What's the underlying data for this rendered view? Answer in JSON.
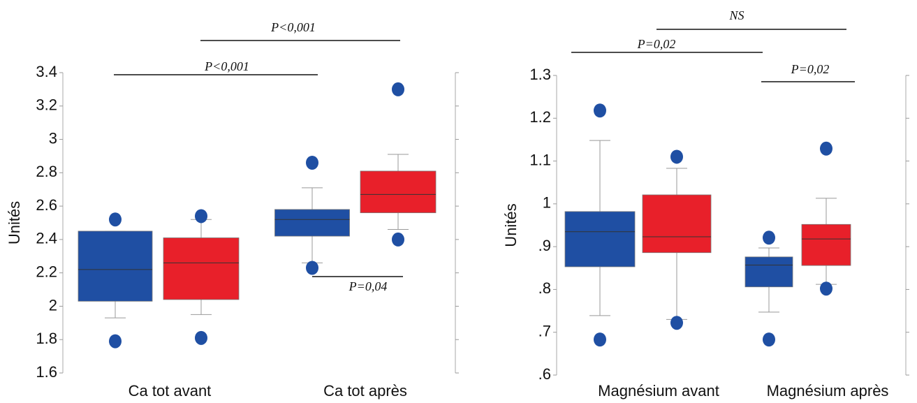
{
  "chart_data": [
    {
      "type": "box",
      "ylabel": "Unités",
      "categories": [
        "Ca tot avant",
        "Ca tot après"
      ],
      "ylim": [
        1.6,
        3.4
      ],
      "yticks": [
        1.6,
        1.8,
        2,
        2.2,
        2.4,
        2.6,
        2.8,
        3,
        3.2,
        3.4
      ],
      "series": [
        {
          "color": "#1f4fa3",
          "boxes": [
            {
              "whisker_low": 1.93,
              "q1": 2.03,
              "median": 2.22,
              "q3": 2.45,
              "whisker_high": 2.45,
              "outliers": [
                2.52,
                1.79
              ]
            },
            {
              "whisker_low": 2.26,
              "q1": 2.42,
              "median": 2.52,
              "q3": 2.58,
              "whisker_high": 2.71,
              "outliers": [
                2.86,
                2.23
              ]
            }
          ]
        },
        {
          "color": "#e8202a",
          "boxes": [
            {
              "whisker_low": 1.95,
              "q1": 2.04,
              "median": 2.26,
              "q3": 2.41,
              "whisker_high": 2.52,
              "outliers": [
                2.54,
                1.81
              ]
            },
            {
              "whisker_low": 2.46,
              "q1": 2.56,
              "median": 2.67,
              "q3": 2.81,
              "whisker_high": 2.91,
              "outliers": [
                3.3,
                2.4
              ]
            }
          ]
        }
      ],
      "annotations": [
        "P<0,001",
        "P<0,001",
        "P=0,04"
      ]
    },
    {
      "type": "box",
      "ylabel": "Unités",
      "categories": [
        "Magnésium avant",
        "Magnésium après"
      ],
      "ylim": [
        0.6,
        1.3
      ],
      "yticks": [
        {
          "value": 0.6,
          "label": ".6"
        },
        {
          "value": 0.7,
          "label": ".7"
        },
        {
          "value": 0.8,
          "label": ".8"
        },
        {
          "value": 0.9,
          "label": ".9"
        },
        1,
        1.1,
        1.2,
        1.3
      ],
      "series": [
        {
          "color": "#1f4fa3",
          "boxes": [
            {
              "whisker_low": 0.739,
              "q1": 0.853,
              "median": 0.935,
              "q3": 0.982,
              "whisker_high": 1.148,
              "outliers": [
                1.218,
                0.683
              ]
            },
            {
              "whisker_low": 0.747,
              "q1": 0.806,
              "median": 0.857,
              "q3": 0.876,
              "whisker_high": 0.897,
              "outliers": [
                0.921,
                0.683
              ]
            }
          ]
        },
        {
          "color": "#e8202a",
          "boxes": [
            {
              "whisker_low": 0.73,
              "q1": 0.886,
              "median": 0.923,
              "q3": 1.021,
              "whisker_high": 1.083,
              "outliers": [
                1.11,
                0.722
              ]
            },
            {
              "whisker_low": 0.812,
              "q1": 0.856,
              "median": 0.918,
              "q3": 0.952,
              "whisker_high": 1.013,
              "outliers": [
                1.129,
                0.802
              ]
            }
          ]
        }
      ],
      "annotations": [
        "NS",
        "P=0,02",
        "P=0,02"
      ]
    }
  ]
}
